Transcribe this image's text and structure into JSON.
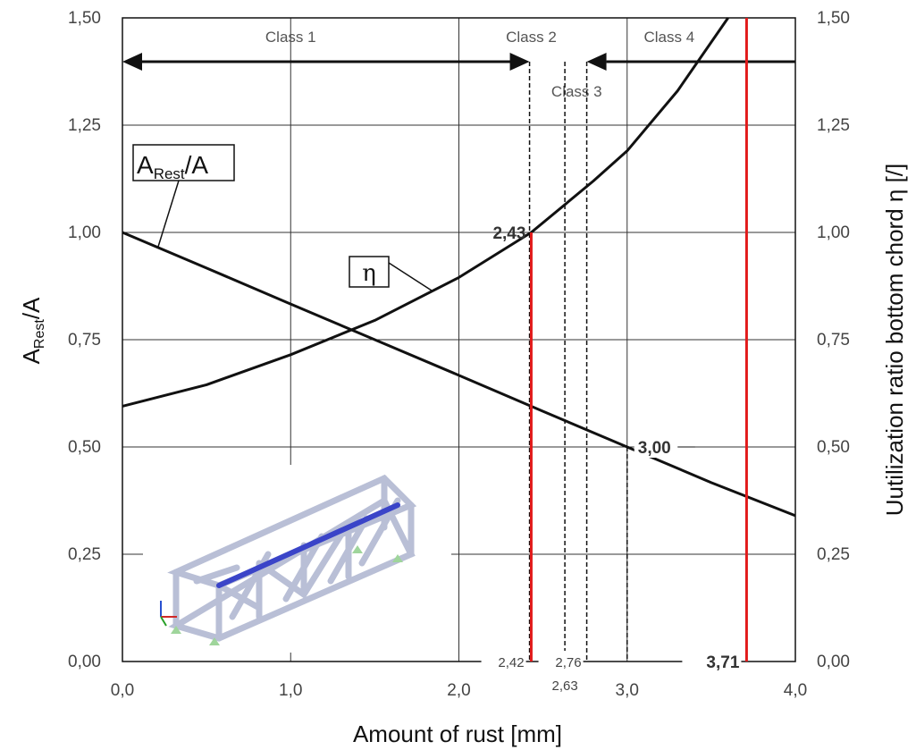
{
  "chart_data": {
    "type": "line",
    "xlabel": "Amount of rust [mm]",
    "ylabel_left": {
      "main": "A",
      "sub": "Rest",
      "tail": "/A"
    },
    "ylabel_right": "Uutilization ratio  bottom chord η [/]",
    "xlim": [
      0,
      4
    ],
    "ylim": [
      0,
      1.5
    ],
    "x_ticks": [
      0,
      1,
      2,
      3,
      4
    ],
    "x_tick_labels": [
      "0,0",
      "1,0",
      "2,0",
      "3,0",
      "4,0"
    ],
    "y_ticks": [
      0,
      0.25,
      0.5,
      0.75,
      1.0,
      1.25,
      1.5
    ],
    "y_tick_labels": [
      "0,00",
      "0,25",
      "0,50",
      "0,75",
      "1,00",
      "1,25",
      "1,50"
    ],
    "grid": true,
    "series": [
      {
        "name": "A_Rest/A",
        "label": {
          "main": "A",
          "sub": "Rest",
          "tail": "/A"
        },
        "x": [
          0.0,
          0.5,
          1.0,
          1.5,
          2.0,
          2.5,
          3.0,
          3.5,
          4.0
        ],
        "y": [
          1.0,
          0.917,
          0.833,
          0.75,
          0.667,
          0.583,
          0.5,
          0.417,
          0.34
        ]
      },
      {
        "name": "η",
        "label": "η",
        "x": [
          0.0,
          0.5,
          1.0,
          1.5,
          2.0,
          2.43,
          2.8,
          3.0,
          3.3,
          3.6
        ],
        "y": [
          0.595,
          0.645,
          0.715,
          0.795,
          0.895,
          1.0,
          1.12,
          1.19,
          1.33,
          1.5
        ]
      }
    ],
    "regions": [
      {
        "label": "Class 1",
        "x": 1.0
      },
      {
        "label": "Class 2",
        "x": 2.43
      },
      {
        "label": "Class 3",
        "x": 2.7
      },
      {
        "label": "Class 4",
        "x": 3.25
      }
    ],
    "red_lines": [
      2.43,
      3.71
    ],
    "dashed_lines": [
      2.42,
      2.63,
      2.76,
      3.0
    ],
    "annotations": [
      {
        "text": "2,42",
        "x": 2.42,
        "style": "bottom"
      },
      {
        "text": "2,63",
        "x": 2.63,
        "style": "below"
      },
      {
        "text": "2,76",
        "x": 2.76,
        "style": "bottom"
      },
      {
        "text": "3,71",
        "x": 3.71,
        "style": "bottom-bold"
      },
      {
        "text": "2,43",
        "x": 2.43,
        "y": 1.0,
        "style": "left-bold"
      },
      {
        "text": "3,00",
        "x": 3.0,
        "y": 0.5,
        "style": "right-bold"
      }
    ],
    "colors": {
      "line": "#111111",
      "grid": "#333333",
      "red": "#e21a1a"
    }
  }
}
